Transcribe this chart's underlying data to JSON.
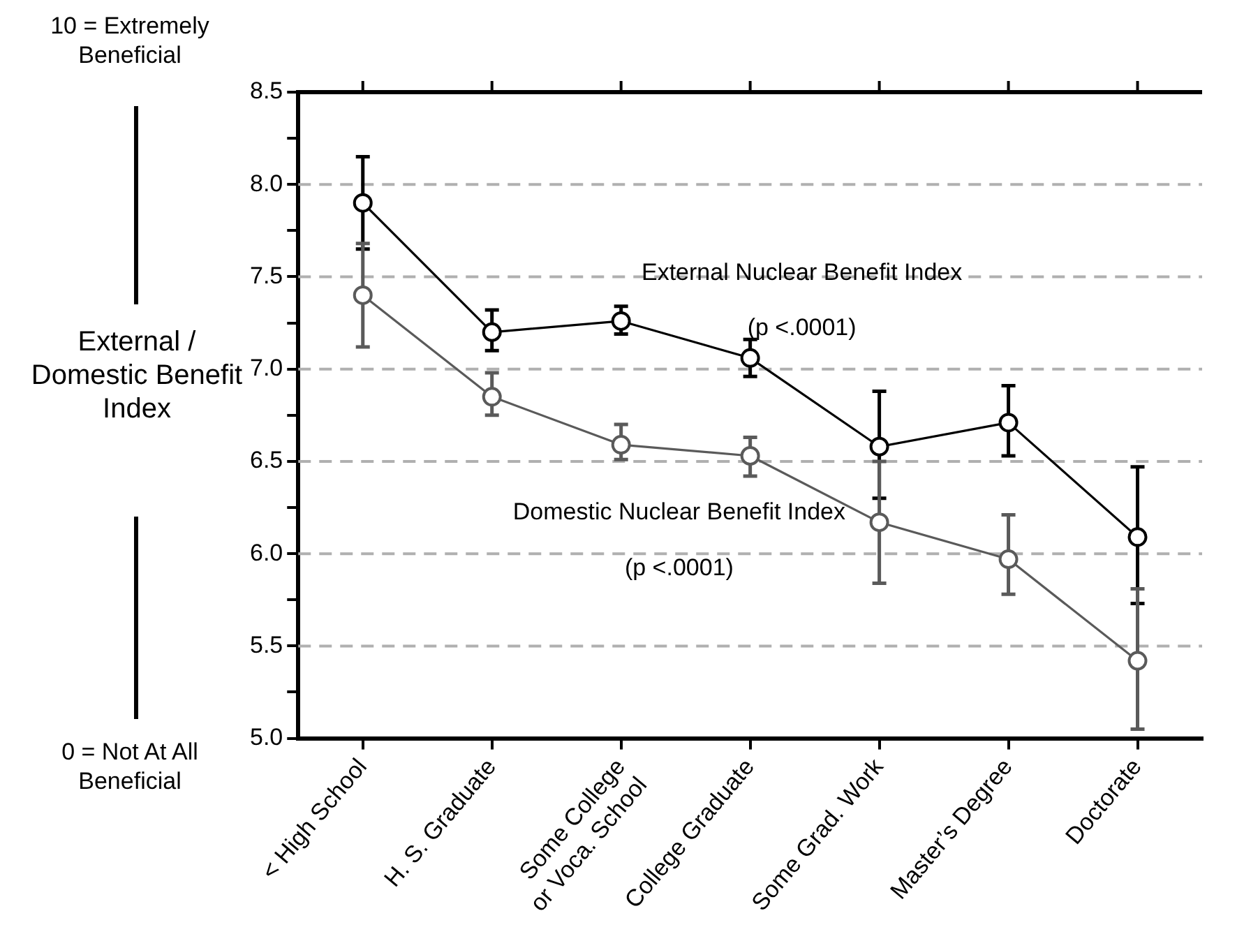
{
  "chart_data": {
    "type": "line",
    "ylabel": "External / Domestic Benefit Index",
    "categories": [
      "< High School",
      "H. S. Graduate",
      "Some College\nor Voca. School",
      "College Graduate",
      "Some Grad. Work",
      "Master’s Degree",
      "Doctorate"
    ],
    "series": [
      {
        "color": "#000000",
        "values": [
          7.9,
          7.2,
          7.26,
          7.06,
          6.58,
          6.71,
          6.09
        ],
        "errors": [
          [
            7.65,
            8.15
          ],
          [
            7.1,
            7.32
          ],
          [
            7.19,
            7.34
          ],
          [
            6.96,
            7.16
          ],
          [
            6.3,
            6.88
          ],
          [
            6.53,
            6.91
          ],
          [
            5.73,
            6.47
          ]
        ]
      },
      {
        "color": "#5a5a5a",
        "values": [
          7.4,
          6.85,
          6.59,
          6.53,
          6.17,
          5.97,
          5.42
        ],
        "errors": [
          [
            7.12,
            7.68
          ],
          [
            6.75,
            6.98
          ],
          [
            6.51,
            6.7
          ],
          [
            6.42,
            6.63
          ],
          [
            5.84,
            6.5
          ],
          [
            5.78,
            6.21
          ],
          [
            5.05,
            5.81
          ]
        ]
      }
    ],
    "ylim": [
      5,
      8.5
    ],
    "yticks": [
      {
        "value": 5,
        "label": "5.0"
      },
      {
        "value": 5.25,
        "label": null
      },
      {
        "value": 5.5,
        "label": "5.5"
      },
      {
        "value": 5.75,
        "label": null
      },
      {
        "value": 6,
        "label": "6.0"
      },
      {
        "value": 6.25,
        "label": null
      },
      {
        "value": 6.5,
        "label": "6.5"
      },
      {
        "value": 6.75,
        "label": null
      },
      {
        "value": 7,
        "label": "7.0"
      },
      {
        "value": 7.25,
        "label": null
      },
      {
        "value": 7.5,
        "label": "7.5"
      },
      {
        "value": 7.75,
        "label": null
      },
      {
        "value": 8,
        "label": "8.0"
      },
      {
        "value": 8.25,
        "label": null
      },
      {
        "value": 8.5,
        "label": "8.5"
      }
    ],
    "grid": "y",
    "marker": "circle",
    "line_style": "solid",
    "legend": false,
    "annotations": [
      "10 = Extremely Beneficial",
      "0 = Not At All Beneficial",
      "External Nuclear Benefit Index",
      "(p <.0001)",
      "Domestic Nuclear Benefit Index",
      "(p <.0001)"
    ]
  }
}
